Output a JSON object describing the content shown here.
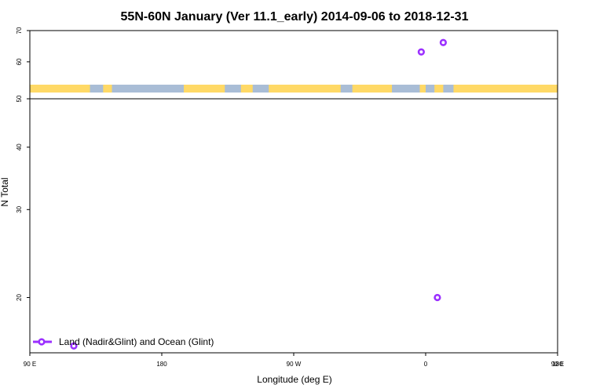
{
  "chart_data": {
    "type": "scatter",
    "title": "55N-60N January (Ver 11.1_early)   2014-09-06 to 2018-12-31",
    "xlabel": "Longitude (deg E)",
    "ylabel": "N Total",
    "x_scale": "linear, starting at 90 E, wrapping 360 degrees",
    "y_scale": "log",
    "xlim_deg_east": [
      90,
      450
    ],
    "xticks": [
      {
        "value": 90,
        "label": "90 E"
      },
      {
        "value": 180,
        "label": "180"
      },
      {
        "value": 270,
        "label": "90 W"
      },
      {
        "value": 360,
        "label": "0"
      },
      {
        "value": 450,
        "label": "90 E"
      },
      {
        "value": 540,
        "label": "180"
      }
    ],
    "ylim": [
      15.5,
      70
    ],
    "yticks": [
      20,
      30,
      40,
      50,
      60,
      70
    ],
    "upper_panel_yrange": [
      50,
      70
    ],
    "lower_panel_yrange": [
      15.5,
      50
    ],
    "series": [
      {
        "name": "Land (Nadir&Glint) and Ocean (Glint)",
        "color": "#9b30ff",
        "marker": "open-circle",
        "points": [
          {
            "lon": 120,
            "y": 16
          },
          {
            "lon": 357,
            "y": 63
          },
          {
            "lon": 372,
            "y": 66
          },
          {
            "lon": 368,
            "y": 20
          },
          {
            "lon": 475,
            "y": 16
          }
        ]
      }
    ],
    "legend": {
      "position": "bottom-left",
      "entries": [
        "Land (Nadir&Glint) and Ocean (Glint)"
      ]
    },
    "grid": false,
    "land_ocean_strip": {
      "land_color": "#ffd966",
      "ocean_color": "#a9bdd6",
      "land_lon_ranges": [
        [
          90,
          131
        ],
        [
          140,
          146
        ],
        [
          195,
          223
        ],
        [
          234,
          242
        ],
        [
          253,
          302
        ],
        [
          310,
          337
        ],
        [
          356,
          360
        ],
        [
          366,
          372
        ],
        [
          379,
          468
        ],
        [
          482,
          538
        ]
      ]
    }
  }
}
